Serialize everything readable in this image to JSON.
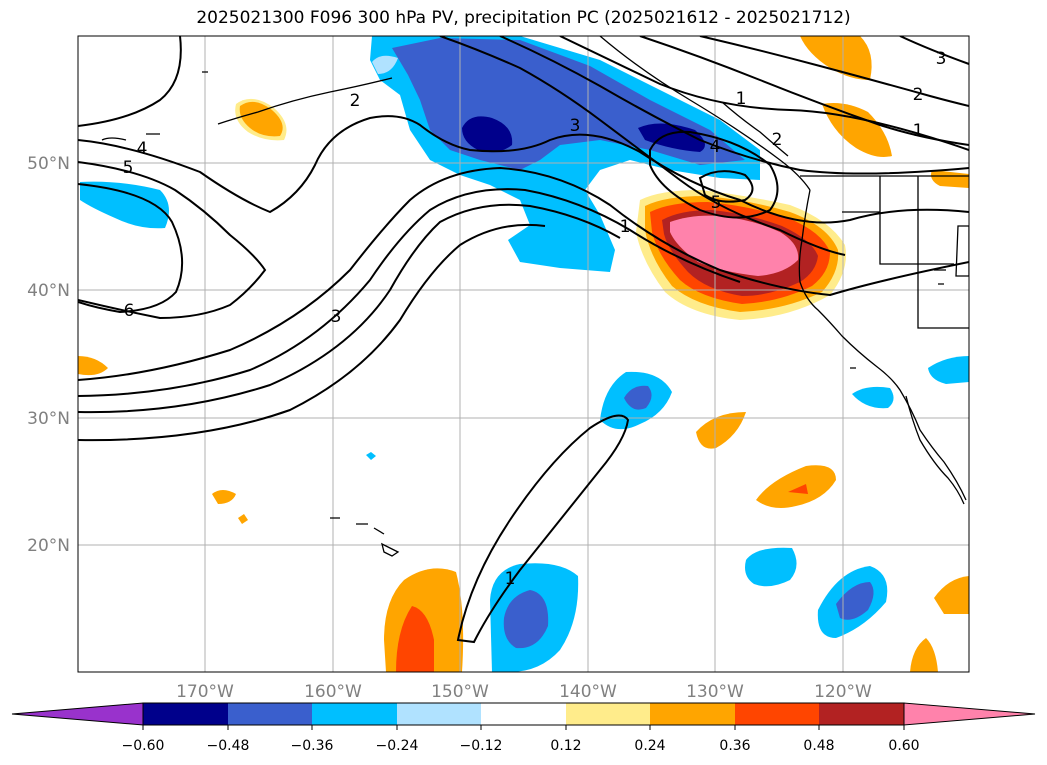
{
  "title": "2025021300 F096 300 hPa PV, precipitation PC (2025021612 - 2025021712)",
  "map": {
    "lat_labels": [
      "50°N",
      "40°N",
      "30°N",
      "20°N"
    ],
    "lon_labels": [
      "170°W",
      "160°W",
      "150°W",
      "140°W",
      "130°W",
      "120°W"
    ],
    "contour_labels": [
      "2",
      "4",
      "5",
      "6",
      "3",
      "3",
      "1",
      "4",
      "5",
      "1",
      "2",
      "1",
      "2",
      "3",
      "1"
    ]
  },
  "colorbar": {
    "ticks": [
      "−0.60",
      "−0.48",
      "−0.36",
      "−0.24",
      "−0.12",
      "0.12",
      "0.24",
      "0.36",
      "0.48",
      "0.60"
    ],
    "colors": [
      "#9932cc",
      "#00008b",
      "#3a5fcd",
      "#00bfff",
      "#b0e2ff",
      "#ffffff",
      "#ffec8b",
      "#ffa500",
      "#ff4500",
      "#b22222",
      "#ff82ab"
    ]
  }
}
